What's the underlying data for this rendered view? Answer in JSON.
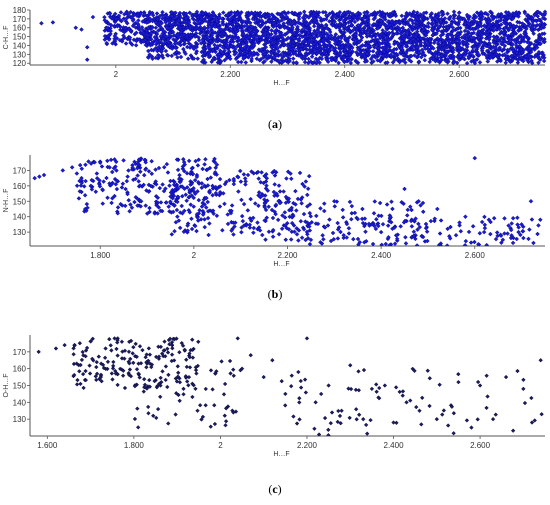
{
  "chart_data": [
    {
      "type": "scatter",
      "panel_label": "a",
      "xlabel": "H…F",
      "ylabel": "C-H…F",
      "xlim": [
        1.85,
        2.75
      ],
      "ylim": [
        118,
        180
      ],
      "x_ticks": [
        2.0,
        2.2,
        2.4,
        2.6
      ],
      "x_tick_labels": [
        "2",
        "2.200",
        "2.400",
        "2.600"
      ],
      "y_ticks": [
        120,
        130,
        140,
        150,
        160,
        170,
        180
      ],
      "y_tick_labels": [
        "120",
        "130",
        "140",
        "150",
        "160",
        "170",
        "180"
      ],
      "marker_color": "#1b1bd0",
      "marker_edge": "#000080",
      "grid": false,
      "points": [
        [
          1.87,
          165
        ],
        [
          1.89,
          166
        ],
        [
          1.93,
          160
        ],
        [
          1.94,
          158
        ],
        [
          1.95,
          138
        ],
        [
          1.95,
          124
        ],
        [
          1.96,
          172
        ],
        [
          1.99,
          176
        ],
        [
          2.0,
          170
        ],
        [
          2.02,
          165
        ],
        [
          2.03,
          168
        ],
        [
          2.04,
          162
        ],
        [
          2.05,
          175
        ],
        [
          2.06,
          170
        ],
        [
          2.07,
          160
        ],
        [
          2.08,
          165
        ],
        [
          2.09,
          172
        ],
        [
          2.1,
          155
        ],
        [
          2.11,
          168
        ],
        [
          2.12,
          145
        ],
        [
          2.13,
          160
        ],
        [
          2.14,
          140
        ],
        [
          2.15,
          170
        ],
        [
          2.16,
          150
        ],
        [
          2.17,
          135
        ],
        [
          2.18,
          160
        ],
        [
          2.19,
          145
        ],
        [
          2.2,
          125
        ],
        [
          2.21,
          175
        ],
        [
          2.22,
          130
        ],
        [
          2.24,
          150
        ],
        [
          2.26,
          122
        ],
        [
          2.28,
          140
        ],
        [
          2.3,
          128
        ],
        [
          2.33,
          160
        ],
        [
          2.36,
          125
        ],
        [
          2.4,
          135
        ],
        [
          2.45,
          122
        ],
        [
          2.5,
          145
        ],
        [
          2.55,
          125
        ],
        [
          2.6,
          130
        ],
        [
          2.65,
          122
        ],
        [
          2.7,
          140
        ],
        [
          2.74,
          125
        ]
      ],
      "dense_regions": [
        {
          "x": [
            2.05,
            2.75
          ],
          "y": [
            125,
            178
          ],
          "count": 1400
        },
        {
          "x": [
            2.15,
            2.75
          ],
          "y": [
            120,
            178
          ],
          "count": 1600
        },
        {
          "x": [
            1.98,
            2.15
          ],
          "y": [
            140,
            178
          ],
          "count": 350
        }
      ]
    },
    {
      "type": "scatter",
      "panel_label": "b",
      "xlabel": "H…F",
      "ylabel": "N-H…F",
      "xlim": [
        1.65,
        2.75
      ],
      "ylim": [
        121,
        180
      ],
      "x_ticks": [
        1.8,
        2.0,
        2.2,
        2.4,
        2.6
      ],
      "x_tick_labels": [
        "1.800",
        "2",
        "2.200",
        "2.400",
        "2.600"
      ],
      "y_ticks": [
        130,
        140,
        150,
        160,
        170
      ],
      "y_tick_labels": [
        "130",
        "140",
        "150",
        "160",
        "170"
      ],
      "marker_color": "#1b1bd0",
      "marker_edge": "#000080",
      "grid": false,
      "points": [
        [
          1.66,
          165
        ],
        [
          1.67,
          166
        ],
        [
          1.68,
          167
        ],
        [
          1.72,
          170
        ],
        [
          1.74,
          172
        ],
        [
          1.75,
          168
        ],
        [
          1.76,
          165
        ],
        [
          1.78,
          160
        ],
        [
          1.8,
          175
        ],
        [
          1.82,
          172
        ],
        [
          2.6,
          178
        ],
        [
          2.62,
          130
        ],
        [
          2.66,
          125
        ],
        [
          2.7,
          135
        ],
        [
          2.72,
          150
        ],
        [
          2.74,
          138
        ],
        [
          2.56,
          128
        ],
        [
          2.58,
          140
        ],
        [
          2.45,
          158
        ],
        [
          2.48,
          150
        ],
        [
          2.52,
          145
        ],
        [
          2.4,
          130
        ],
        [
          2.36,
          145
        ],
        [
          2.38,
          135
        ],
        [
          2.3,
          150
        ],
        [
          2.32,
          128
        ],
        [
          2.28,
          133
        ],
        [
          2.25,
          125
        ]
      ],
      "dense_regions": [
        {
          "x": [
            1.75,
            2.05
          ],
          "y": [
            142,
            178
          ],
          "count": 260
        },
        {
          "x": [
            1.95,
            2.25
          ],
          "y": [
            128,
            170
          ],
          "count": 240
        },
        {
          "x": [
            2.15,
            2.5
          ],
          "y": [
            122,
            150
          ],
          "count": 150
        },
        {
          "x": [
            2.4,
            2.75
          ],
          "y": [
            121,
            140
          ],
          "count": 90
        }
      ]
    },
    {
      "type": "scatter",
      "panel_label": "c",
      "xlabel": "H…F",
      "ylabel": "O-H…F",
      "xlim": [
        1.56,
        2.75
      ],
      "ylim": [
        120,
        180
      ],
      "x_ticks": [
        1.6,
        1.8,
        2.0,
        2.2,
        2.4,
        2.6
      ],
      "x_tick_labels": [
        "1.600",
        "1.800",
        "2",
        "2.200",
        "2.400",
        "2.600"
      ],
      "y_ticks": [
        130,
        140,
        150,
        160,
        170
      ],
      "y_tick_labels": [
        "130",
        "140",
        "150",
        "160",
        "170"
      ],
      "marker_color": "#1c1c5c",
      "marker_edge": "#000030",
      "grid": false,
      "points": [
        [
          1.58,
          170
        ],
        [
          1.62,
          172
        ],
        [
          1.64,
          174
        ],
        [
          2.04,
          178
        ],
        [
          2.05,
          160
        ],
        [
          2.07,
          168
        ],
        [
          2.1,
          155
        ],
        [
          2.12,
          165
        ],
        [
          2.15,
          145
        ],
        [
          2.18,
          158
        ],
        [
          2.2,
          178
        ],
        [
          2.22,
          140
        ],
        [
          2.25,
          150
        ],
        [
          2.28,
          135
        ],
        [
          2.3,
          162
        ],
        [
          2.33,
          130
        ],
        [
          2.35,
          148
        ],
        [
          2.38,
          150
        ],
        [
          2.4,
          128
        ],
        [
          2.43,
          140
        ],
        [
          2.46,
          135
        ],
        [
          2.5,
          130
        ],
        [
          2.55,
          152
        ],
        [
          2.58,
          125
        ],
        [
          2.6,
          150
        ],
        [
          2.63,
          130
        ],
        [
          2.66,
          155
        ],
        [
          2.7,
          148
        ],
        [
          2.72,
          128
        ],
        [
          2.74,
          165
        ]
      ],
      "dense_regions": [
        {
          "x": [
            1.66,
            1.95
          ],
          "y": [
            148,
            178
          ],
          "count": 190
        },
        {
          "x": [
            1.8,
            2.05
          ],
          "y": [
            125,
            165
          ],
          "count": 60
        },
        {
          "x": [
            2.1,
            2.75
          ],
          "y": [
            120,
            160
          ],
          "count": 80
        }
      ]
    }
  ]
}
